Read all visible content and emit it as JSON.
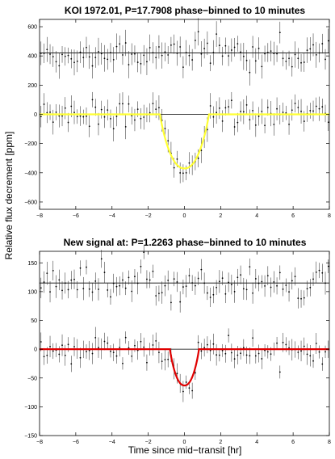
{
  "figure": {
    "ylabel": "Relative flux decrement [ppm]",
    "xlabel": "Time since mid−transit [hr]"
  },
  "chart_data": [
    {
      "type": "scatter",
      "title": "KOI 1972.01, P=17.7908 phase−binned to 10 minutes",
      "xlim": [
        -8,
        8
      ],
      "ylim": [
        -650,
        650
      ],
      "xticks": [
        "−8",
        "−6",
        "−4",
        "−2",
        "0",
        "2",
        "4",
        "6",
        "8"
      ],
      "yticks": [
        "−600",
        "−400",
        "−200",
        "0",
        "200",
        "400",
        "600"
      ],
      "reference_lines": [
        0,
        420
      ],
      "offset_series": {
        "baseline": 420,
        "scatter": 55,
        "errorbar": 70
      },
      "transit": {
        "depth": 370,
        "t1": 1.35,
        "t2": 0.9
      },
      "model_color": "#ffff33",
      "point_spacing": 0.167,
      "noise": {
        "scatter": 55,
        "errorbar": 65
      }
    },
    {
      "type": "scatter",
      "title": "New signal at: P=1.2263 phase−binned to 10 minutes",
      "xlim": [
        -8,
        8
      ],
      "ylim": [
        -150,
        170
      ],
      "xticks": [
        "−8",
        "−6",
        "−4",
        "−2",
        "0",
        "2",
        "4",
        "6",
        "8"
      ],
      "yticks": [
        "−150",
        "−100",
        "−50",
        "0",
        "50",
        "100",
        "150"
      ],
      "reference_lines": [
        0,
        115
      ],
      "offset_series": {
        "baseline": 115,
        "scatter": 14,
        "errorbar": 15
      },
      "transit": {
        "depth": 63,
        "t1": 0.8,
        "t2": 0.42
      },
      "model_color": "#e00000",
      "point_spacing": 0.167,
      "noise": {
        "scatter": 13,
        "errorbar": 14
      }
    }
  ]
}
